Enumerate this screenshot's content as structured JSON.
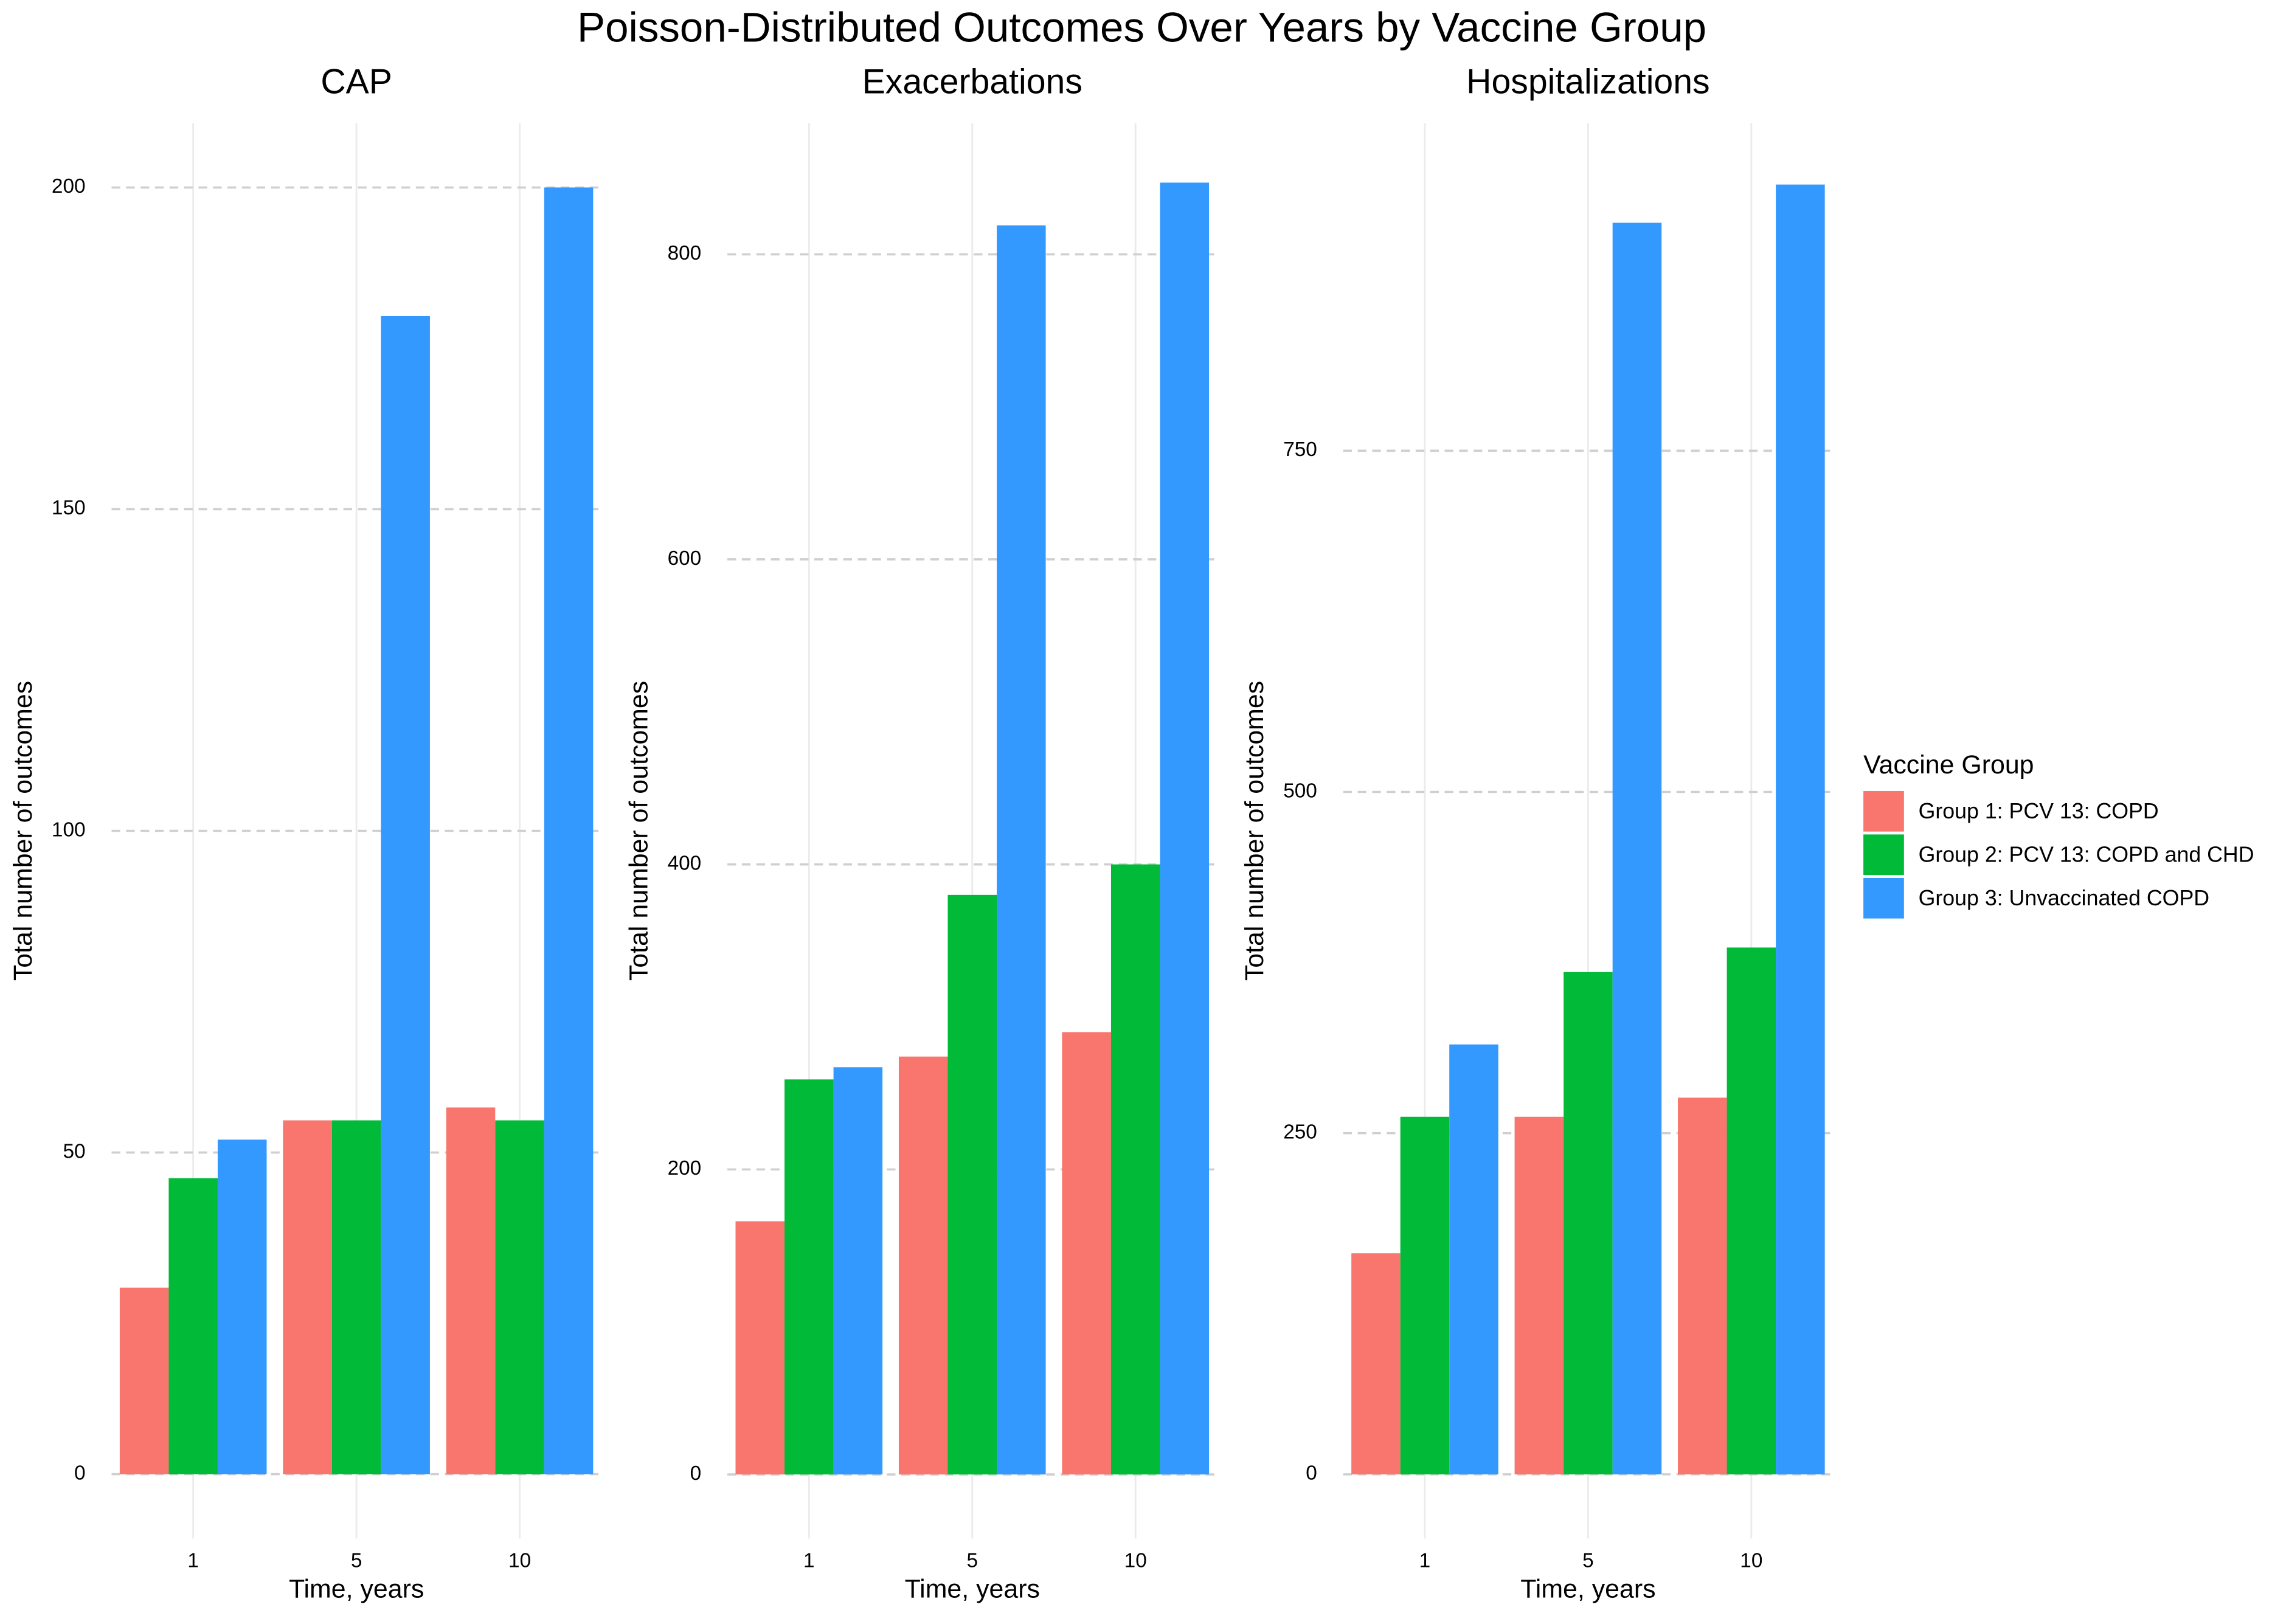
{
  "title": "Poisson-Distributed Outcomes Over Years by Vaccine Group",
  "legend_title": "Vaccine Group",
  "chart_data": [
    {
      "type": "bar",
      "title": "CAP",
      "xlabel": "Time, years",
      "ylabel": "Total number of outcomes",
      "categories": [
        "1",
        "5",
        "10"
      ],
      "series": [
        {
          "name": "Group 1: PCV 13: COPD",
          "color": "#F8766D",
          "values": [
            29,
            55,
            57
          ]
        },
        {
          "name": "Group 2: PCV 13: COPD and CHD",
          "color": "#00BA38",
          "values": [
            46,
            55,
            55
          ]
        },
        {
          "name": "Group 3: Unvaccinated COPD",
          "color": "#3399FF",
          "values": [
            52,
            180,
            200
          ]
        }
      ],
      "ylim": [
        -10,
        210
      ],
      "yticks": [
        0,
        50,
        100,
        150,
        200
      ],
      "grid": true
    },
    {
      "type": "bar",
      "title": "Exacerbations",
      "xlabel": "Time, years",
      "ylabel": "Total number of outcomes",
      "categories": [
        "1",
        "5",
        "10"
      ],
      "series": [
        {
          "name": "Group 1: PCV 13: COPD",
          "color": "#F8766D",
          "values": [
            166,
            274,
            290
          ]
        },
        {
          "name": "Group 2: PCV 13: COPD and CHD",
          "color": "#00BA38",
          "values": [
            259,
            380,
            400
          ]
        },
        {
          "name": "Group 3: Unvaccinated COPD",
          "color": "#3399FF",
          "values": [
            267,
            819,
            847
          ]
        }
      ],
      "ylim": [
        -42,
        886
      ],
      "yticks": [
        0,
        200,
        400,
        600,
        800
      ],
      "grid": true
    },
    {
      "type": "bar",
      "title": "Hospitalizations",
      "xlabel": "Time, years",
      "ylabel": "Total number of outcomes",
      "categories": [
        "1",
        "5",
        "10"
      ],
      "series": [
        {
          "name": "Group 1: PCV 13: COPD",
          "color": "#F8766D",
          "values": [
            162,
            262,
            276
          ]
        },
        {
          "name": "Group 2: PCV 13: COPD and CHD",
          "color": "#00BA38",
          "values": [
            262,
            368,
            386
          ]
        },
        {
          "name": "Group 3: Unvaccinated COPD",
          "color": "#3399FF",
          "values": [
            315,
            917,
            945
          ]
        }
      ],
      "ylim": [
        -47,
        990
      ],
      "yticks": [
        0,
        250,
        500,
        750
      ],
      "grid": true
    }
  ]
}
